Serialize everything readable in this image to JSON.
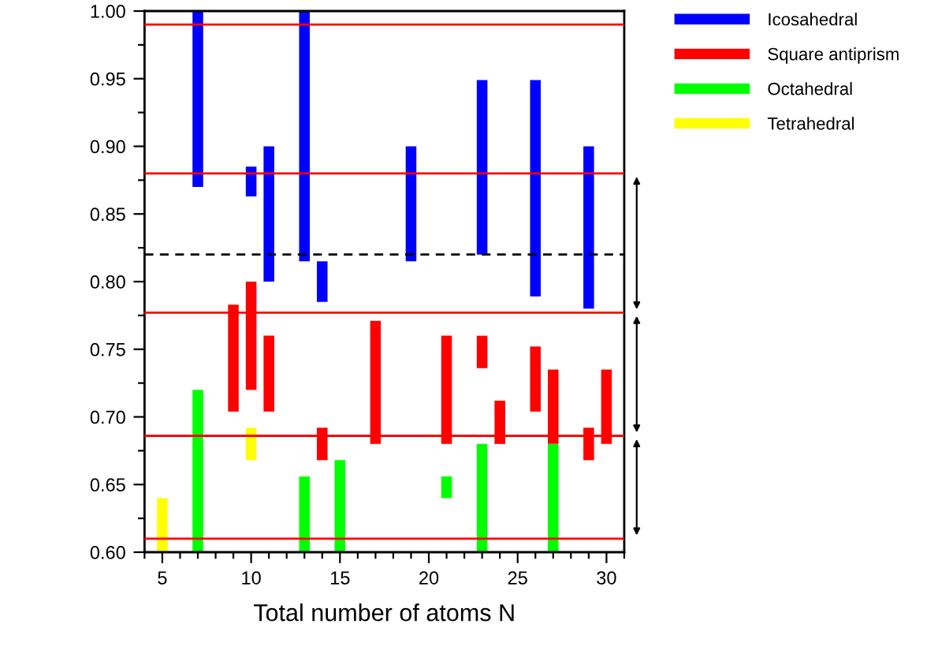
{
  "chart_data": {
    "type": "bar",
    "xlabel": "Total number of atoms N",
    "xlim": [
      4,
      31
    ],
    "xticks": [
      {
        "value": 4,
        "label": null
      },
      5,
      {
        "value": 6,
        "label": null
      },
      {
        "value": 7,
        "label": null
      },
      {
        "value": 8,
        "label": null
      },
      {
        "value": 9,
        "label": null
      },
      10,
      {
        "value": 11,
        "label": null
      },
      {
        "value": 12,
        "label": null
      },
      {
        "value": 13,
        "label": null
      },
      {
        "value": 14,
        "label": null
      },
      15,
      {
        "value": 16,
        "label": null
      },
      {
        "value": 17,
        "label": null
      },
      {
        "value": 18,
        "label": null
      },
      {
        "value": 19,
        "label": null
      },
      20,
      {
        "value": 21,
        "label": null
      },
      {
        "value": 22,
        "label": null
      },
      {
        "value": 23,
        "label": null
      },
      {
        "value": 24,
        "label": null
      },
      25,
      {
        "value": 26,
        "label": null
      },
      {
        "value": 27,
        "label": null
      },
      {
        "value": 28,
        "label": null
      },
      {
        "value": 29,
        "label": null
      },
      30,
      {
        "value": 31,
        "label": null
      }
    ],
    "ylim": [
      0.6,
      1.0
    ],
    "yticks": [
      {
        "value": 0.6,
        "label": "0.60"
      },
      {
        "value": 0.625,
        "label": null
      },
      0.65,
      {
        "value": 0.675,
        "label": null
      },
      {
        "value": 0.7,
        "label": "0.70"
      },
      {
        "value": 0.725,
        "label": null
      },
      0.75,
      {
        "value": 0.775,
        "label": null
      },
      {
        "value": 0.8,
        "label": "0.80"
      },
      {
        "value": 0.825,
        "label": null
      },
      0.85,
      {
        "value": 0.875,
        "label": null
      },
      {
        "value": 0.9,
        "label": "0.90"
      },
      {
        "value": 0.925,
        "label": null
      },
      0.95,
      {
        "value": 0.975,
        "label": null
      },
      {
        "value": 1.0,
        "label": "1.00"
      }
    ],
    "series": [
      {
        "name": "Icosahedral",
        "color": "#0000ff",
        "x": [
          7,
          10,
          11,
          13,
          14,
          19,
          23,
          26,
          29
        ],
        "base": [
          0.87,
          0.863,
          0.8,
          0.815,
          0.785,
          0.815,
          0.82,
          0.789,
          0.78
        ],
        "values": [
          0.13,
          0.022,
          0.1,
          0.185,
          0.03,
          0.085,
          0.129,
          0.16,
          0.12
        ]
      },
      {
        "name": "Square antiprism",
        "color": "#ff0000",
        "x": [
          9,
          10,
          11,
          14,
          17,
          21,
          23,
          24,
          26,
          27,
          29,
          30
        ],
        "base": [
          0.704,
          0.72,
          0.704,
          0.668,
          0.68,
          0.68,
          0.736,
          0.68,
          0.704,
          0.68,
          0.668,
          0.68
        ],
        "values": [
          0.079,
          0.08,
          0.056,
          0.024,
          0.091,
          0.08,
          0.024,
          0.032,
          0.048,
          0.055,
          0.024,
          0.055
        ]
      },
      {
        "name": "Octahedral",
        "color": "#00ff00",
        "x": [
          7,
          13,
          15,
          21,
          23,
          27
        ],
        "base": [
          0.6,
          0.6,
          0.6,
          0.64,
          0.6,
          0.6
        ],
        "values": [
          0.12,
          0.056,
          0.068,
          0.016,
          0.08,
          0.08
        ]
      },
      {
        "name": "Tetrahedral",
        "color": "#ffff00",
        "x": [
          5,
          10
        ],
        "base": [
          0.6,
          0.668
        ],
        "values": [
          0.04,
          0.024
        ]
      }
    ],
    "ref_lines": [
      {
        "axis": "y",
        "value": 0.99,
        "color": "#ff0000",
        "line_style": "solid"
      },
      {
        "axis": "y",
        "value": 0.88,
        "color": "#ff0000",
        "line_style": "solid"
      },
      {
        "axis": "y",
        "value": 0.82,
        "color": "#000000",
        "line_style": "dashed"
      },
      {
        "axis": "y",
        "value": 0.777,
        "color": "#ff0000",
        "line_style": "solid"
      },
      {
        "axis": "y",
        "value": 0.686,
        "color": "#ff0000",
        "line_style": "solid"
      },
      {
        "axis": "y",
        "value": 0.61,
        "color": "#ff0000",
        "line_style": "solid"
      }
    ],
    "legend": "top right"
  }
}
